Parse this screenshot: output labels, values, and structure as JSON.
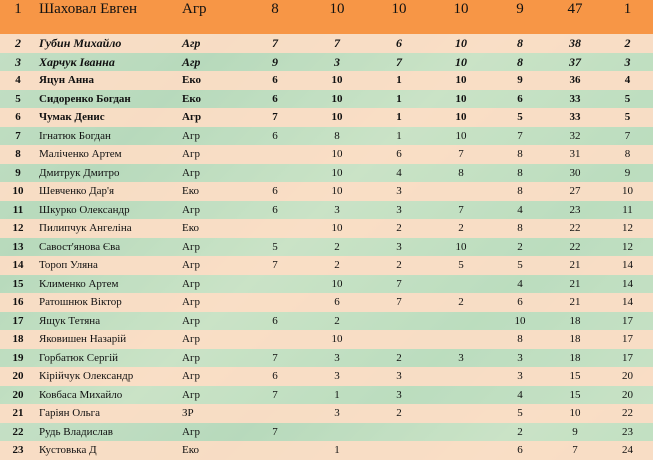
{
  "header": {
    "num": "1",
    "name": "Шаховал Евген",
    "group": "Агр",
    "s1": "8",
    "s2": "10",
    "s3": "10",
    "s4": "10",
    "s5": "9",
    "total": "47",
    "place": "1"
  },
  "rows": [
    {
      "num": "2",
      "name": "Губин Михайло",
      "group": "Агр",
      "s1": "7",
      "s2": "7",
      "s3": "6",
      "s4": "10",
      "s5": "8",
      "total": "38",
      "place": "2",
      "style": "bi",
      "bg": "peach"
    },
    {
      "num": "3",
      "name": "Харчук Іванна",
      "group": "Агр",
      "s1": "9",
      "s2": "3",
      "s3": "7",
      "s4": "10",
      "s5": "8",
      "total": "37",
      "place": "3",
      "style": "bi",
      "bg": "green"
    },
    {
      "num": "4",
      "name": "Яцун Анна",
      "group": "Еко",
      "s1": "6",
      "s2": "10",
      "s3": "1",
      "s4": "10",
      "s5": "9",
      "total": "36",
      "place": "4",
      "style": "b",
      "bg": "peach"
    },
    {
      "num": "5",
      "name": "Сидоренко Богдан",
      "group": "Еко",
      "s1": "6",
      "s2": "10",
      "s3": "1",
      "s4": "10",
      "s5": "6",
      "total": "33",
      "place": "5",
      "style": "b",
      "bg": "green"
    },
    {
      "num": "6",
      "name": "Чумак Денис",
      "group": "Агр",
      "s1": "7",
      "s2": "10",
      "s3": "1",
      "s4": "10",
      "s5": "5",
      "total": "33",
      "place": "5",
      "style": "b",
      "bg": "peach"
    },
    {
      "num": "7",
      "name": "Ігнатюк Богдан",
      "group": "Агр",
      "s1": "6",
      "s2": "8",
      "s3": "1",
      "s4": "10",
      "s5": "7",
      "total": "32",
      "place": "7",
      "style": "",
      "bg": "green"
    },
    {
      "num": "8",
      "name": "Маліченко Артем",
      "group": "Агр",
      "s1": "",
      "s2": "10",
      "s3": "6",
      "s4": "7",
      "s5": "8",
      "total": "31",
      "place": "8",
      "style": "",
      "bg": "peach"
    },
    {
      "num": "9",
      "name": "Дмитрук Дмитро",
      "group": "Агр",
      "s1": "",
      "s2": "10",
      "s3": "4",
      "s4": "8",
      "s5": "8",
      "total": "30",
      "place": "9",
      "style": "",
      "bg": "green"
    },
    {
      "num": "10",
      "name": "Шевченко Дар'я",
      "group": "Еко",
      "s1": "6",
      "s2": "10",
      "s3": "3",
      "s4": "",
      "s5": "8",
      "total": "27",
      "place": "10",
      "style": "",
      "bg": "peach"
    },
    {
      "num": "11",
      "name": "Шкурко Олександр",
      "group": "Агр",
      "s1": "6",
      "s2": "3",
      "s3": "3",
      "s4": "7",
      "s5": "4",
      "total": "23",
      "place": "11",
      "style": "",
      "bg": "green"
    },
    {
      "num": "12",
      "name": "Пилипчук Ангеліна",
      "group": "Еко",
      "s1": "",
      "s2": "10",
      "s3": "2",
      "s4": "2",
      "s5": "8",
      "total": "22",
      "place": "12",
      "style": "",
      "bg": "peach"
    },
    {
      "num": "13",
      "name": "Савост'янова Єва",
      "group": "Агр",
      "s1": "5",
      "s2": "2",
      "s3": "3",
      "s4": "10",
      "s5": "2",
      "total": "22",
      "place": "12",
      "style": "",
      "bg": "green"
    },
    {
      "num": "14",
      "name": "Тороп Уляна",
      "group": "Агр",
      "s1": "7",
      "s2": "2",
      "s3": "2",
      "s4": "5",
      "s5": "5",
      "total": "21",
      "place": "14",
      "style": "",
      "bg": "peach"
    },
    {
      "num": "15",
      "name": "Клименко Артем",
      "group": "Агр",
      "s1": "",
      "s2": "10",
      "s3": "7",
      "s4": "",
      "s5": "4",
      "total": "21",
      "place": "14",
      "style": "",
      "bg": "green"
    },
    {
      "num": "16",
      "name": "Ратошнюк Віктор",
      "group": "Агр",
      "s1": "",
      "s2": "6",
      "s3": "7",
      "s4": "2",
      "s5": "6",
      "total": "21",
      "place": "14",
      "style": "",
      "bg": "peach"
    },
    {
      "num": "17",
      "name": "Ящук Тетяна",
      "group": "Агр",
      "s1": "6",
      "s2": "2",
      "s3": "",
      "s4": "",
      "s5": "10",
      "total": "18",
      "place": "17",
      "style": "",
      "bg": "green"
    },
    {
      "num": "18",
      "name": "Яковишен Назарій",
      "group": "Агр",
      "s1": "",
      "s2": "10",
      "s3": "",
      "s4": "",
      "s5": "8",
      "total": "18",
      "place": "17",
      "style": "",
      "bg": "peach"
    },
    {
      "num": "19",
      "name": "Горбатюк Сергій",
      "group": "Агр",
      "s1": "7",
      "s2": "3",
      "s3": "2",
      "s4": "3",
      "s5": "3",
      "total": "18",
      "place": "17",
      "style": "",
      "bg": "green"
    },
    {
      "num": "20",
      "name": "Кірійчук Олександр",
      "group": "Агр",
      "s1": "6",
      "s2": "3",
      "s3": "3",
      "s4": "",
      "s5": "3",
      "total": "15",
      "place": "20",
      "style": "",
      "bg": "peach"
    },
    {
      "num": "20",
      "name": "Ковбаса Михайло",
      "group": "Агр",
      "s1": "7",
      "s2": "1",
      "s3": "3",
      "s4": "",
      "s5": "4",
      "total": "15",
      "place": "20",
      "style": "",
      "bg": "green"
    },
    {
      "num": "21",
      "name": "Гаріян Ольга",
      "group": "ЗР",
      "s1": "",
      "s2": "3",
      "s3": "2",
      "s4": "",
      "s5": "5",
      "total": "10",
      "place": "22",
      "style": "",
      "bg": "peach"
    },
    {
      "num": "22",
      "name": "Рудь Владислав",
      "group": "Агр",
      "s1": "7",
      "s2": "",
      "s3": "",
      "s4": "",
      "s5": "2",
      "total": "9",
      "place": "23",
      "style": "",
      "bg": "green"
    },
    {
      "num": "23",
      "name": "Кустовька Д",
      "group": "Еко",
      "s1": "",
      "s2": "1",
      "s3": "",
      "s4": "",
      "s5": "6",
      "total": "7",
      "place": "24",
      "style": "",
      "bg": "peach"
    }
  ]
}
